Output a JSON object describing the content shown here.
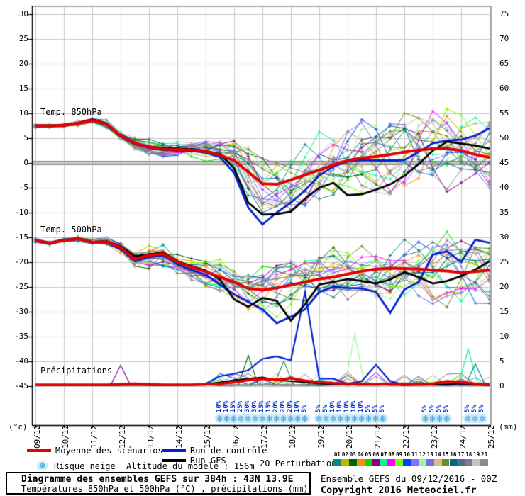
{
  "labels": {
    "temp850": "Temp. 850hPa",
    "temp500": "Temp. 500hPa",
    "precip": "Précipitations",
    "unit_left": "(°c)",
    "unit_right": "(mm)"
  },
  "legend": {
    "mean_label": "Moyenne des scénarios",
    "control_label": "Run de contrôle",
    "gfs_label": "Run GFS",
    "snow_label": "Risque neige",
    "altitude_label": "Altitude du modele : 156m",
    "perturbations_label": "20 Perturbations"
  },
  "footer": {
    "title": "Diagramme des ensembles GEFS sur 384h : 43N 13.9E",
    "subtitle": "Températures 850hPa et 500hPa (°C) , précipitations (mm)",
    "run_info": "Ensemble GEFS du 09/12/2016 - 00Z",
    "copyright": "Copyright 2016 Meteociel.fr"
  },
  "chart_data": {
    "type": "line",
    "title": "Diagramme des ensembles GEFS sur 384h : 43N 13.9E",
    "x_start_date": "09/12",
    "x_end_date": "25/12",
    "days": 16,
    "step_days": 0.5,
    "dates": [
      "09/12",
      "10/12",
      "11/12",
      "12/12",
      "13/12",
      "14/12",
      "15/12",
      "16/12",
      "17/12",
      "18/12",
      "19/12",
      "20/12",
      "21/12",
      "22/12",
      "23/12",
      "24/12",
      "25/12"
    ],
    "left_axis": {
      "unit": "(°c)",
      "ticks": [
        30,
        25,
        20,
        15,
        10,
        5,
        0,
        -5,
        -10,
        -15,
        -20,
        -25,
        -30,
        -35,
        -40,
        -45
      ]
    },
    "right_axis": {
      "unit": "(mm)",
      "ticks": [
        75,
        70,
        65,
        60,
        55,
        50,
        45,
        40,
        35,
        30,
        25,
        20,
        15,
        10,
        5,
        0
      ]
    },
    "series": {
      "t850": {
        "label": "Temp. 850hPa",
        "mean": [
          7.5,
          7.5,
          7.6,
          8.0,
          8.6,
          7.8,
          5.5,
          4.0,
          3.2,
          2.8,
          2.7,
          2.6,
          2.3,
          1.6,
          0.5,
          -1.8,
          -4.2,
          -4.3,
          -3.4,
          -2.4,
          -1.4,
          -0.4,
          0.5,
          1.0,
          1.3,
          1.7,
          2.2,
          2.6,
          2.9,
          2.9,
          2.5,
          1.7,
          1.1
        ],
        "control": [
          7.4,
          7.4,
          7.5,
          7.9,
          8.5,
          7.7,
          5.3,
          3.8,
          3.0,
          2.6,
          2.5,
          2.4,
          2.1,
          1.2,
          -2.0,
          -9.0,
          -12.4,
          -10.0,
          -8.0,
          -5.5,
          -2.5,
          -0.7,
          0.3,
          0.6,
          0.5,
          0.5,
          0.6,
          2.2,
          4.0,
          4.5,
          4.7,
          5.5,
          7.0
        ],
        "gfs": [
          7.6,
          7.6,
          7.7,
          8.1,
          8.8,
          8.0,
          5.6,
          4.1,
          3.3,
          3.0,
          2.9,
          2.8,
          2.4,
          1.8,
          -1.0,
          -8.0,
          -10.4,
          -10.3,
          -9.8,
          -7.2,
          -5.0,
          -4.0,
          -6.5,
          -6.3,
          -5.4,
          -4.3,
          -2.6,
          -0.2,
          2.5,
          4.3,
          3.9,
          3.5,
          2.9
        ],
        "spread": [
          0.3,
          0.3,
          0.3,
          0.4,
          0.4,
          0.6,
          0.8,
          1.0,
          1.2,
          1.3,
          1.4,
          1.5,
          1.8,
          2.2,
          3.0,
          4.2,
          5.2,
          5.4,
          5.4,
          5.2,
          5.2,
          5.4,
          5.6,
          5.7,
          5.8,
          6.0,
          6.2,
          6.4,
          6.6,
          6.8,
          7.0,
          7.2,
          7.5
        ]
      },
      "t500": {
        "label": "Temp. 500hPa",
        "mean": [
          -15.6,
          -16.2,
          -15.6,
          -15.3,
          -16.0,
          -15.9,
          -17.0,
          -19.4,
          -18.6,
          -18.3,
          -20.0,
          -21.0,
          -21.9,
          -23.0,
          -24.0,
          -25.3,
          -25.6,
          -25.2,
          -24.6,
          -24.0,
          -23.4,
          -23.0,
          -22.4,
          -21.8,
          -21.4,
          -21.2,
          -21.3,
          -21.4,
          -21.6,
          -21.8,
          -22.1,
          -21.9,
          -21.6
        ],
        "control": [
          -15.7,
          -16.3,
          -15.7,
          -15.4,
          -16.1,
          -16.0,
          -17.4,
          -19.8,
          -19.0,
          -18.6,
          -20.4,
          -21.6,
          -22.5,
          -24.5,
          -26.5,
          -28.0,
          -29.5,
          -32.3,
          -31.0,
          -29.5,
          -26.0,
          -25.0,
          -25.2,
          -25.3,
          -26.0,
          -30.2,
          -25.5,
          -24.0,
          -18.5,
          -17.8,
          -20.0,
          -15.5,
          -16.1
        ],
        "gfs": [
          -15.5,
          -16.1,
          -15.5,
          -15.2,
          -15.9,
          -15.8,
          -16.8,
          -18.8,
          -18.4,
          -18.0,
          -19.8,
          -20.8,
          -21.7,
          -23.5,
          -27.5,
          -29.0,
          -27.2,
          -27.8,
          -31.8,
          -28.5,
          -24.5,
          -24.0,
          -23.4,
          -23.8,
          -24.3,
          -23.5,
          -22.0,
          -23.0,
          -24.3,
          -23.8,
          -22.8,
          -21.5,
          -19.8
        ],
        "spread": [
          0.3,
          0.3,
          0.3,
          0.4,
          0.5,
          0.7,
          0.9,
          1.5,
          2.0,
          2.2,
          2.0,
          2.0,
          2.2,
          2.5,
          3.0,
          3.5,
          4.0,
          4.2,
          4.2,
          4.0,
          4.0,
          4.2,
          4.5,
          4.5,
          4.6,
          4.8,
          5.0,
          5.0,
          5.2,
          5.4,
          5.5,
          5.8,
          6.0
        ]
      },
      "precip": {
        "label": "Précipitations",
        "mean": [
          0.3,
          0.3,
          0.3,
          0.3,
          0.3,
          0.3,
          0.4,
          0.5,
          0.4,
          0.3,
          0.3,
          0.3,
          0.4,
          0.5,
          0.8,
          1.2,
          1.5,
          1.3,
          1.6,
          1.1,
          0.8,
          0.6,
          0.5,
          0.5,
          0.4,
          0.5,
          0.4,
          0.4,
          0.5,
          1.0,
          0.8,
          0.5,
          0.4
        ],
        "control": [
          0.2,
          0.2,
          0.2,
          0.2,
          0.2,
          0.2,
          0.2,
          0.3,
          0.2,
          0.2,
          0.2,
          0.2,
          0.5,
          2.0,
          2.5,
          3.2,
          5.5,
          6.0,
          5.2,
          19.0,
          1.5,
          1.5,
          0.5,
          1.0,
          4.3,
          1.0,
          0.3,
          0.5,
          0.3,
          0.3,
          0.5,
          0.3,
          0.2
        ],
        "gfs": [
          0.2,
          0.2,
          0.2,
          0.2,
          0.2,
          0.2,
          0.3,
          0.3,
          0.3,
          0.2,
          0.2,
          0.3,
          0.4,
          0.8,
          1.2,
          1.5,
          1.8,
          1.2,
          1.0,
          0.8,
          0.5,
          0.4,
          0.3,
          0.3,
          0.3,
          0.3,
          0.2,
          0.3,
          0.3,
          0.4,
          0.5,
          0.3,
          0.2
        ],
        "member_spikes": [
          {
            "day": 3.0,
            "mm": 4.2,
            "color": "#8b008b"
          },
          {
            "day": 7.5,
            "mm": 6.2,
            "color": "#006400"
          },
          {
            "day": 8.75,
            "mm": 5.0,
            "color": "#2e8b57"
          },
          {
            "day": 11.25,
            "mm": 10.5,
            "color": "#98fb98"
          },
          {
            "day": 15.25,
            "mm": 7.5,
            "color": "#00fa9a"
          },
          {
            "day": 15.5,
            "mm": 4.5,
            "color": "#008b8b"
          }
        ]
      }
    },
    "snow_risk": {
      "step_days": 0.25,
      "clusters": [
        {
          "start_day": 6.5,
          "percents": [
            10,
            10,
            15,
            25,
            30,
            30,
            15,
            15,
            20,
            20,
            20,
            10,
            5
          ]
        },
        {
          "start_day": 10.0,
          "percents": [
            5,
            5,
            10,
            10,
            10,
            10,
            10,
            5,
            5,
            5
          ]
        },
        {
          "start_day": 13.75,
          "percents": [
            5,
            5,
            5,
            5
          ]
        },
        {
          "start_day": 15.25,
          "percents": [
            5,
            5,
            5
          ]
        }
      ]
    },
    "colors": {
      "mean": "#e60000",
      "control": "#0022cc",
      "gfs": "#000000",
      "grid": "#c8c8c8",
      "zero_line_dark": "#8a8a8a",
      "zero_line_light": "#c4c4c4",
      "frame_dark": "#000000",
      "frame_gray": "#a8a8a8",
      "snow_flake": "#2e8fd8",
      "snow_band": "#c9ecfb",
      "snow_text": "#0033cc",
      "members": [
        "#008b8b",
        "#b8b800",
        "#006400",
        "#ff8c00",
        "#00dd00",
        "#8b008b",
        "#00fa9a",
        "#ff00ff",
        "#7cfc00",
        "#0045ff",
        "#8470ff",
        "#98fb98",
        "#7b68ee",
        "#deb887",
        "#6b8e23",
        "#00688b",
        "#4f6d8a",
        "#8f7193",
        "#c4c4c4",
        "#8c8c8c"
      ]
    },
    "snow_glyph": "❄",
    "perturbation_numbers": [
      "01",
      "02",
      "03",
      "04",
      "05",
      "06",
      "07",
      "08",
      "09",
      "10",
      "11",
      "12",
      "13",
      "14",
      "15",
      "16",
      "17",
      "18",
      "19",
      "20"
    ]
  }
}
